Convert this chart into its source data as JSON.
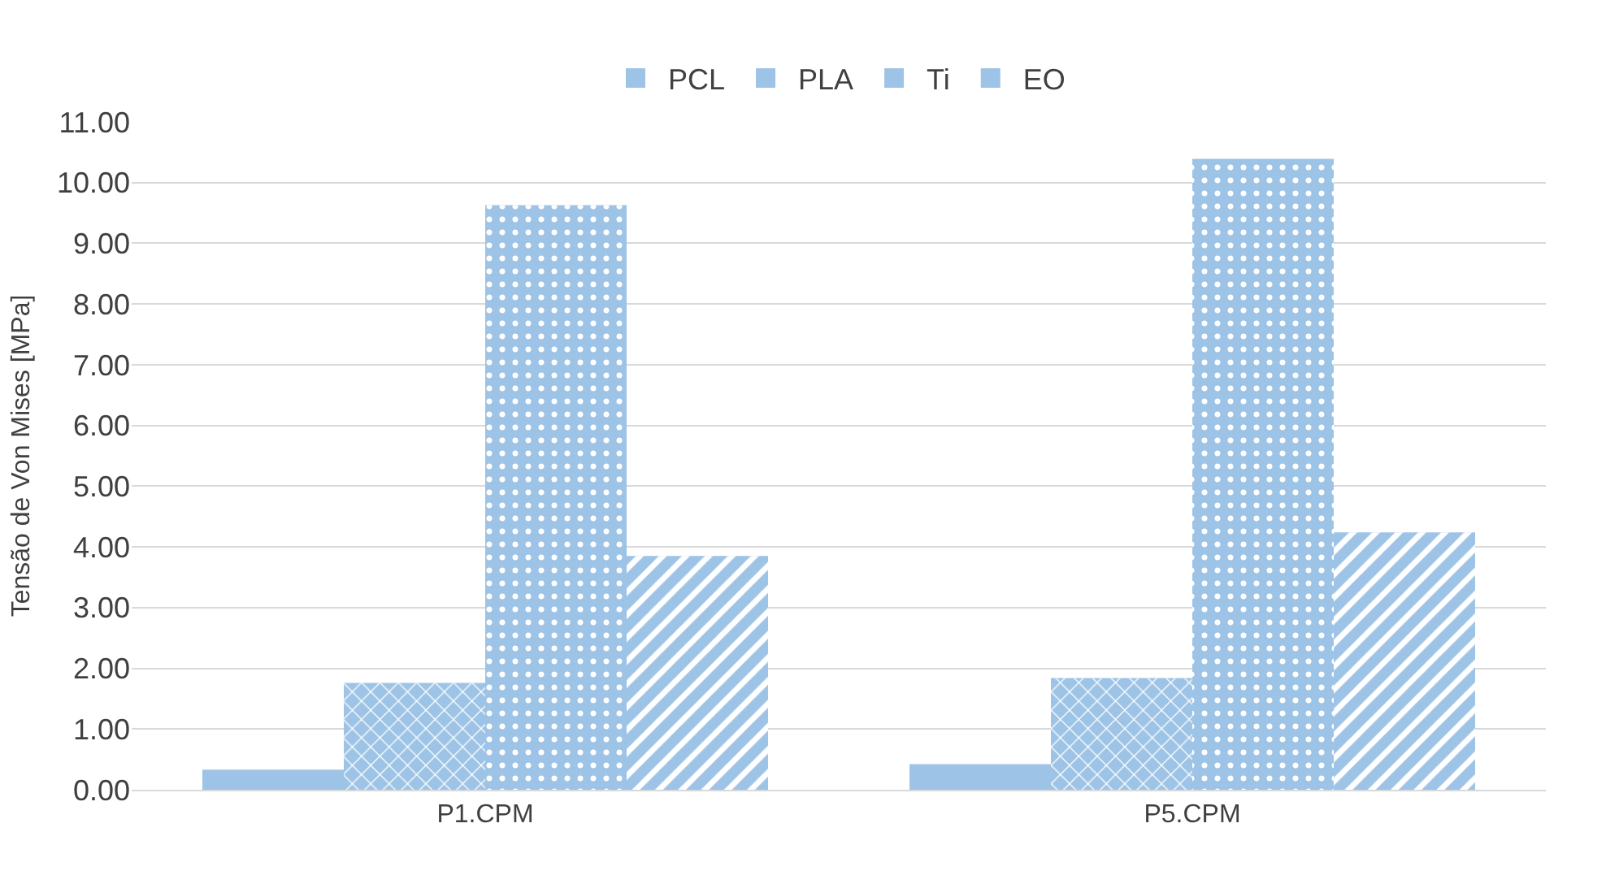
{
  "chart_data": {
    "type": "bar",
    "ylabel": "Tensão de Von Mises [MPa]",
    "categories": [
      "P1.CPM",
      "P5.CPM"
    ],
    "series": [
      {
        "name": "PCL",
        "color": "#9dc3e6",
        "values": [
          0.33,
          0.42
        ]
      },
      {
        "name": "PLA",
        "color": "#9dc3e6",
        "values": [
          1.76,
          1.84
        ]
      },
      {
        "name": "Ti",
        "color": "#9dc3e6",
        "values": [
          9.63,
          10.39
        ]
      },
      {
        "name": "EO",
        "color": "#9dc3e6",
        "values": [
          3.85,
          4.24
        ]
      }
    ],
    "ylim": [
      0,
      11
    ],
    "yticks": [
      {
        "value": 0,
        "label": "0.00"
      },
      {
        "value": 1,
        "label": "1.00"
      },
      {
        "value": 2,
        "label": "2.00"
      },
      {
        "value": 3,
        "label": "3.00"
      },
      {
        "value": 4,
        "label": "4.00"
      },
      {
        "value": 5,
        "label": "5.00"
      },
      {
        "value": 6,
        "label": "6.00"
      },
      {
        "value": 7,
        "label": "7.00"
      },
      {
        "value": 8,
        "label": "8.00"
      },
      {
        "value": 9,
        "label": "9.00"
      },
      {
        "value": 10,
        "label": "10.00"
      },
      {
        "value": 11,
        "label": "11.00"
      }
    ],
    "grid": "y",
    "legend": "top"
  }
}
